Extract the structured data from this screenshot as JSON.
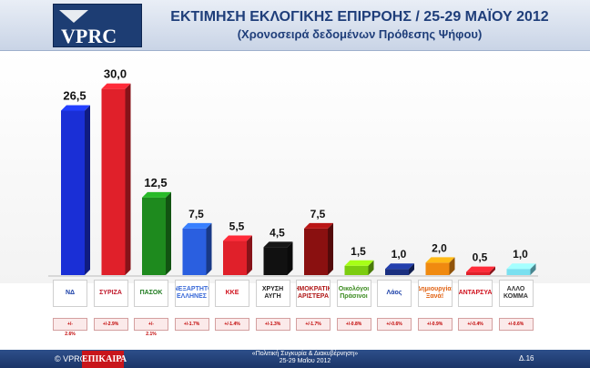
{
  "header": {
    "logo_text": "VPRC",
    "title": "ΕΚΤΙΜΗΣΗ ΕΚΛΟΓΙΚΗΣ ΕΠΙΡΡΟΗΣ / 25-29 ΜΑΪΟΥ 2012",
    "subtitle": "(Χρονοσειρά δεδομένων Πρόθεσης Ψήφου)"
  },
  "chart_data": {
    "type": "bar",
    "categories": [
      "ΝΔ",
      "ΣΥΡΙΖΑ",
      "ΠΑΣΟΚ",
      "ΑΝΕΞΑΡΤΗΤΟΙ ΕΛΛΗΝΕΣ",
      "ΚΚΕ",
      "ΧΡΥΣΗ ΑΥΓΗ",
      "ΔΗΜΟΚΡΑΤΙΚΗ ΑΡΙΣΤΕΡΑ",
      "Οικολόγοι Πράσινοι",
      "Λάος",
      "Δημιουργία, Ξανά!",
      "ΑΝΤΑΡΣΥΑ",
      "ΑΛΛΟ ΚΟΜΜΑ"
    ],
    "values": [
      26.5,
      30.0,
      12.5,
      7.5,
      5.5,
      4.5,
      7.5,
      1.5,
      1.0,
      2.0,
      0.5,
      1.0
    ],
    "value_labels": [
      "26,5",
      "30,0",
      "12,5",
      "7,5",
      "5,5",
      "4,5",
      "7,5",
      "1,5",
      "1,0",
      "2,0",
      "0,5",
      "1,0"
    ],
    "colors": [
      "#1a2fd6",
      "#e0202a",
      "#1e8a1e",
      "#2a5fe0",
      "#e0202a",
      "#111111",
      "#8a1010",
      "#7ccc10",
      "#1a2f80",
      "#f08a10",
      "#e0202a",
      "#7ae0f0"
    ],
    "ylim": [
      0,
      32
    ],
    "grid": false,
    "legend": "none"
  },
  "party_logos": [
    {
      "text": "ΝΔ",
      "color": "#1a3fa8"
    },
    {
      "text": "ΣΥΡΙΖΑ",
      "color": "#c0182a"
    },
    {
      "text": "ΠΑΣΟΚ",
      "color": "#1e7a1e"
    },
    {
      "text": "ΑΝΕΞΑΡΤΗΤΟΙ ΕΛΛΗΝΕΣ",
      "color": "#3a6ad8"
    },
    {
      "text": "ΚΚΕ",
      "color": "#d0101c"
    },
    {
      "text": "ΧΡΥΣΗ ΑΥΓΗ",
      "color": "#222222"
    },
    {
      "text": "ΔΗΜΟΚΡΑΤΙΚΗ ΑΡΙΣΤΕΡΑ",
      "color": "#b01818"
    },
    {
      "text": "Οικολόγοι Πράσινοι",
      "color": "#3a8a1e"
    },
    {
      "text": "Λάος",
      "color": "#1a3fa8"
    },
    {
      "text": "Δημιουργία, Ξανά!",
      "color": "#e06010"
    },
    {
      "text": "ΑΝΤΑΡΣΥΑ",
      "color": "#d0101c"
    },
    {
      "text": "ΑΛΛΟ ΚΟΜΜΑ",
      "color": "#333333"
    }
  ],
  "changes": [
    {
      "main": "+/-",
      "sub": "2.6%"
    },
    {
      "main": "+/-2.9%",
      "sub": ""
    },
    {
      "main": "+/-",
      "sub": "2.1%"
    },
    {
      "main": "+/-1.7%",
      "sub": ""
    },
    {
      "main": "+/-1.4%",
      "sub": ""
    },
    {
      "main": "+/-1.3%",
      "sub": ""
    },
    {
      "main": "+/-1.7%",
      "sub": ""
    },
    {
      "main": "+/-0.8%",
      "sub": ""
    },
    {
      "main": "+/-0.6%",
      "sub": ""
    },
    {
      "main": "+/-0.9%",
      "sub": ""
    },
    {
      "main": "+/-0.4%",
      "sub": ""
    },
    {
      "main": "+/-0.6%",
      "sub": ""
    }
  ],
  "footer": {
    "copyright": "© VPRC",
    "brand": "ΕΠΙΚΑΙΡΑ",
    "title_line1": "«Πολιτική Συγκυρία & Διακυβέρνηση»",
    "title_line2": "25-29 Μαΐου 2012",
    "page": "Δ.16"
  }
}
